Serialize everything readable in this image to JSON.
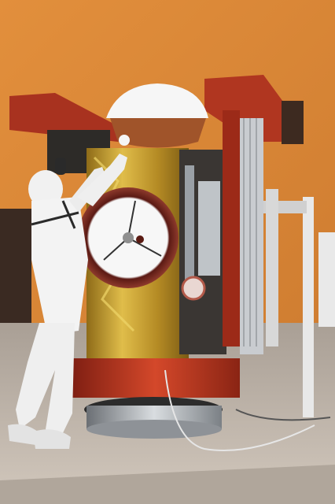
{
  "image": {
    "subject": "spacecraft-in-clean-room",
    "colors": {
      "wall": "#de8c3c",
      "floor": "#b7ab9f",
      "gold_foil": "#c9a230",
      "red_panel": "#b0331e",
      "suit": "#f2f2f2",
      "dish": "#8a3a2a",
      "cover": "#f6f6f6"
    }
  }
}
